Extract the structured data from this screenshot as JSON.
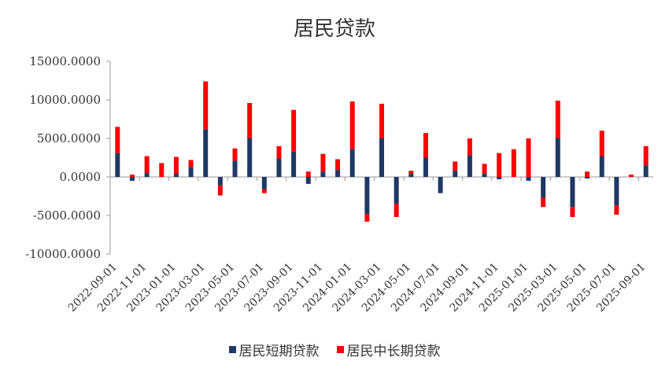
{
  "chart_data": {
    "type": "bar",
    "stacked": true,
    "title": "居民贷款",
    "xlabel": "",
    "ylabel": "",
    "ylim": [
      -10000,
      15000
    ],
    "yticks": [
      15000,
      10000,
      5000,
      0,
      -5000,
      -10000
    ],
    "ytick_labels": [
      "15000.0000",
      "10000.0000",
      "5000.0000",
      "0.0000",
      "-5000.0000",
      "-10000.0000"
    ],
    "xtick_labels": [
      "2022-09-01",
      "2022-11-01",
      "2023-01-01",
      "2023-03-01",
      "2023-05-01",
      "2023-07-01",
      "2023-09-01",
      "2023-11-01",
      "2024-01-01",
      "2024-03-01",
      "2024-05-01",
      "2024-07-01",
      "2024-09-01",
      "2024-11-01",
      "2025-01-01",
      "2025-03-01",
      "2025-05-01",
      "2025-07-01",
      "2025-09-01"
    ],
    "categories": [
      "2022-09-01",
      "2022-10-01",
      "2022-11-01",
      "2022-12-01",
      "2023-01-01",
      "2023-02-01",
      "2023-03-01",
      "2023-04-01",
      "2023-05-01",
      "2023-06-01",
      "2023-07-01",
      "2023-08-01",
      "2023-09-01",
      "2023-10-01",
      "2023-11-01",
      "2023-12-01",
      "2024-01-01",
      "2024-02-01",
      "2024-03-01",
      "2024-04-01",
      "2024-05-01",
      "2024-06-01",
      "2024-07-01",
      "2024-08-01",
      "2024-09-01",
      "2024-10-01",
      "2024-11-01",
      "2024-12-01",
      "2025-01-01",
      "2025-02-01",
      "2025-03-01",
      "2025-04-01",
      "2025-05-01",
      "2025-06-01",
      "2025-07-01",
      "2025-08-01",
      "2025-09-01"
    ],
    "series": [
      {
        "name": "居民短期贷款",
        "color": "#1f3864",
        "values": [
          3100,
          -500,
          500,
          0,
          400,
          1300,
          6200,
          -1100,
          2100,
          5000,
          -1600,
          2400,
          3300,
          -900,
          700,
          900,
          3600,
          -4800,
          5000,
          -3500,
          400,
          2500,
          -2100,
          800,
          2800,
          400,
          -300,
          0,
          -500,
          -2700,
          5000,
          -3900,
          -200,
          2700,
          -3700,
          0,
          1500
        ]
      },
      {
        "name": "居民中长期贷款",
        "color": "#ff0000",
        "values": [
          3400,
          300,
          2200,
          1800,
          2200,
          900,
          6200,
          -1300,
          1600,
          4600,
          -500,
          1600,
          5400,
          700,
          2300,
          1400,
          6200,
          -1000,
          4500,
          -1700,
          400,
          3200,
          0,
          1200,
          2200,
          1300,
          3100,
          3600,
          5000,
          -1200,
          4900,
          -1300,
          700,
          3300,
          -1200,
          300,
          2500
        ]
      }
    ],
    "legend_position": "bottom",
    "grid": false
  }
}
